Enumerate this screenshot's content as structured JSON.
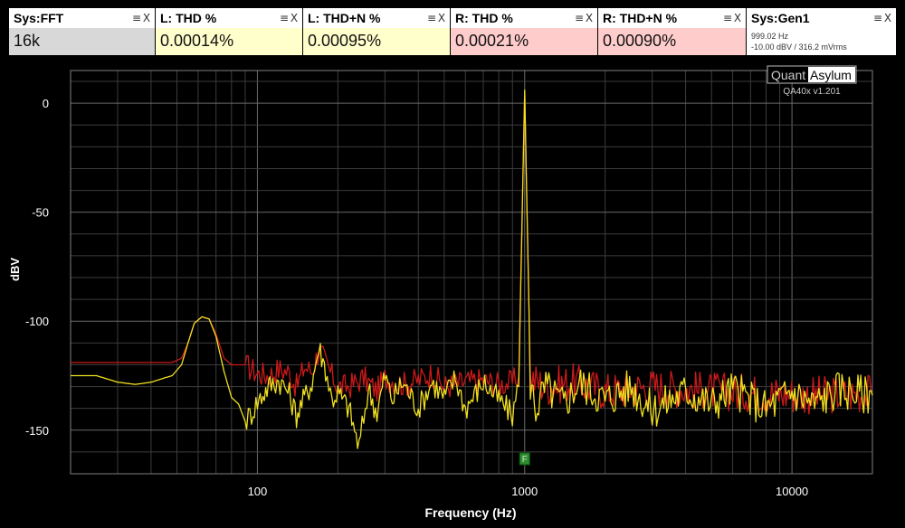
{
  "widgets": [
    {
      "title": "Sys:FFT",
      "value": "16k",
      "bg": "#d8d8d8"
    },
    {
      "title": "L: THD %",
      "value": "0.00014%",
      "bg": "#ffffcc"
    },
    {
      "title": "L: THD+N %",
      "value": "0.00095%",
      "bg": "#ffffcc"
    },
    {
      "title": "R: THD %",
      "value": "0.00021%",
      "bg": "#ffcccc"
    },
    {
      "title": "R: THD+N %",
      "value": "0.00090%",
      "bg": "#ffcccc"
    }
  ],
  "generator": {
    "title": "Sys:Gen1",
    "line1": "999.02 Hz",
    "line2": "-10.00 dBV  / 316.2 mVrms",
    "bg": "#ffffff"
  },
  "widget_controls": {
    "menu_icon": "≡",
    "close_icon": "X"
  },
  "logo": {
    "part1": "Quant",
    "part2": "Asylum",
    "version": "QA40x v1.201"
  },
  "marker": {
    "label": "F",
    "x": 1000,
    "color": "#2e8b2e"
  },
  "chart_data": {
    "type": "line",
    "title": "",
    "xlabel": "Frequency (Hz)",
    "ylabel": "dBV",
    "x_scale": "log",
    "xlim": [
      20,
      20000
    ],
    "ylim": [
      -170,
      15
    ],
    "x_ticks": [
      100,
      1000,
      10000
    ],
    "x_tick_labels": [
      "100",
      "1000",
      "10000"
    ],
    "y_ticks": [
      0,
      -50,
      -100,
      -150
    ],
    "y_tick_labels": [
      "0",
      "-50",
      "-100",
      "-150"
    ],
    "grid": true,
    "background": "#000000",
    "grid_color": "#3c3c3c",
    "series": [
      {
        "color": "#cc1a1a",
        "points": [
          [
            20,
            -119
          ],
          [
            30,
            -119
          ],
          [
            40,
            -119
          ],
          [
            48,
            -119
          ],
          [
            52,
            -117
          ],
          [
            55,
            -110
          ],
          [
            58,
            -101
          ],
          [
            62,
            -98
          ],
          [
            66,
            -99
          ],
          [
            70,
            -106
          ],
          [
            75,
            -117
          ],
          [
            80,
            -120
          ],
          [
            90,
            -120
          ],
          [
            100,
            -124
          ],
          [
            110,
            -125
          ],
          [
            120,
            -122
          ],
          [
            130,
            -123
          ],
          [
            140,
            -130
          ],
          [
            150,
            -121
          ],
          [
            160,
            -123
          ],
          [
            170,
            -113
          ],
          [
            180,
            -119
          ],
          [
            190,
            -125
          ],
          [
            200,
            -130
          ],
          [
            220,
            -130
          ],
          [
            250,
            -126
          ],
          [
            280,
            -132
          ],
          [
            300,
            -126
          ],
          [
            350,
            -129
          ],
          [
            400,
            -127
          ],
          [
            450,
            -124
          ],
          [
            500,
            -130
          ],
          [
            600,
            -128
          ],
          [
            700,
            -127
          ],
          [
            800,
            -129
          ],
          [
            900,
            -128
          ],
          [
            950,
            -125
          ],
          [
            1000,
            5
          ],
          [
            1050,
            -126
          ],
          [
            1200,
            -130
          ],
          [
            1500,
            -128
          ],
          [
            2000,
            -132
          ],
          [
            3000,
            -130
          ],
          [
            5000,
            -132
          ],
          [
            8000,
            -133
          ],
          [
            12000,
            -134
          ],
          [
            20000,
            -133
          ]
        ]
      },
      {
        "color": "#f0e020",
        "points": [
          [
            20,
            -125
          ],
          [
            25,
            -125
          ],
          [
            30,
            -128
          ],
          [
            35,
            -129
          ],
          [
            40,
            -128
          ],
          [
            45,
            -126
          ],
          [
            48,
            -125
          ],
          [
            52,
            -120
          ],
          [
            55,
            -110
          ],
          [
            58,
            -101
          ],
          [
            62,
            -98
          ],
          [
            66,
            -99
          ],
          [
            70,
            -107
          ],
          [
            75,
            -123
          ],
          [
            80,
            -135
          ],
          [
            85,
            -138
          ],
          [
            90,
            -146
          ],
          [
            95,
            -142
          ],
          [
            100,
            -137
          ],
          [
            110,
            -130
          ],
          [
            120,
            -127
          ],
          [
            130,
            -132
          ],
          [
            140,
            -143
          ],
          [
            150,
            -135
          ],
          [
            160,
            -128
          ],
          [
            170,
            -112
          ],
          [
            180,
            -122
          ],
          [
            190,
            -136
          ],
          [
            200,
            -133
          ],
          [
            220,
            -140
          ],
          [
            240,
            -158
          ],
          [
            260,
            -131
          ],
          [
            280,
            -142
          ],
          [
            300,
            -125
          ],
          [
            320,
            -136
          ],
          [
            350,
            -128
          ],
          [
            400,
            -140
          ],
          [
            450,
            -128
          ],
          [
            500,
            -135
          ],
          [
            550,
            -126
          ],
          [
            600,
            -140
          ],
          [
            700,
            -128
          ],
          [
            800,
            -136
          ],
          [
            900,
            -143
          ],
          [
            950,
            -130
          ],
          [
            1000,
            6
          ],
          [
            1050,
            -128
          ],
          [
            1100,
            -140
          ],
          [
            1200,
            -130
          ],
          [
            1400,
            -138
          ],
          [
            1600,
            -128
          ],
          [
            2000,
            -136
          ],
          [
            2500,
            -130
          ],
          [
            3000,
            -141
          ],
          [
            4000,
            -132
          ],
          [
            5000,
            -138
          ],
          [
            6000,
            -131
          ],
          [
            8000,
            -140
          ],
          [
            10000,
            -132
          ],
          [
            12000,
            -138
          ],
          [
            15000,
            -131
          ],
          [
            20000,
            -134
          ]
        ]
      }
    ]
  }
}
